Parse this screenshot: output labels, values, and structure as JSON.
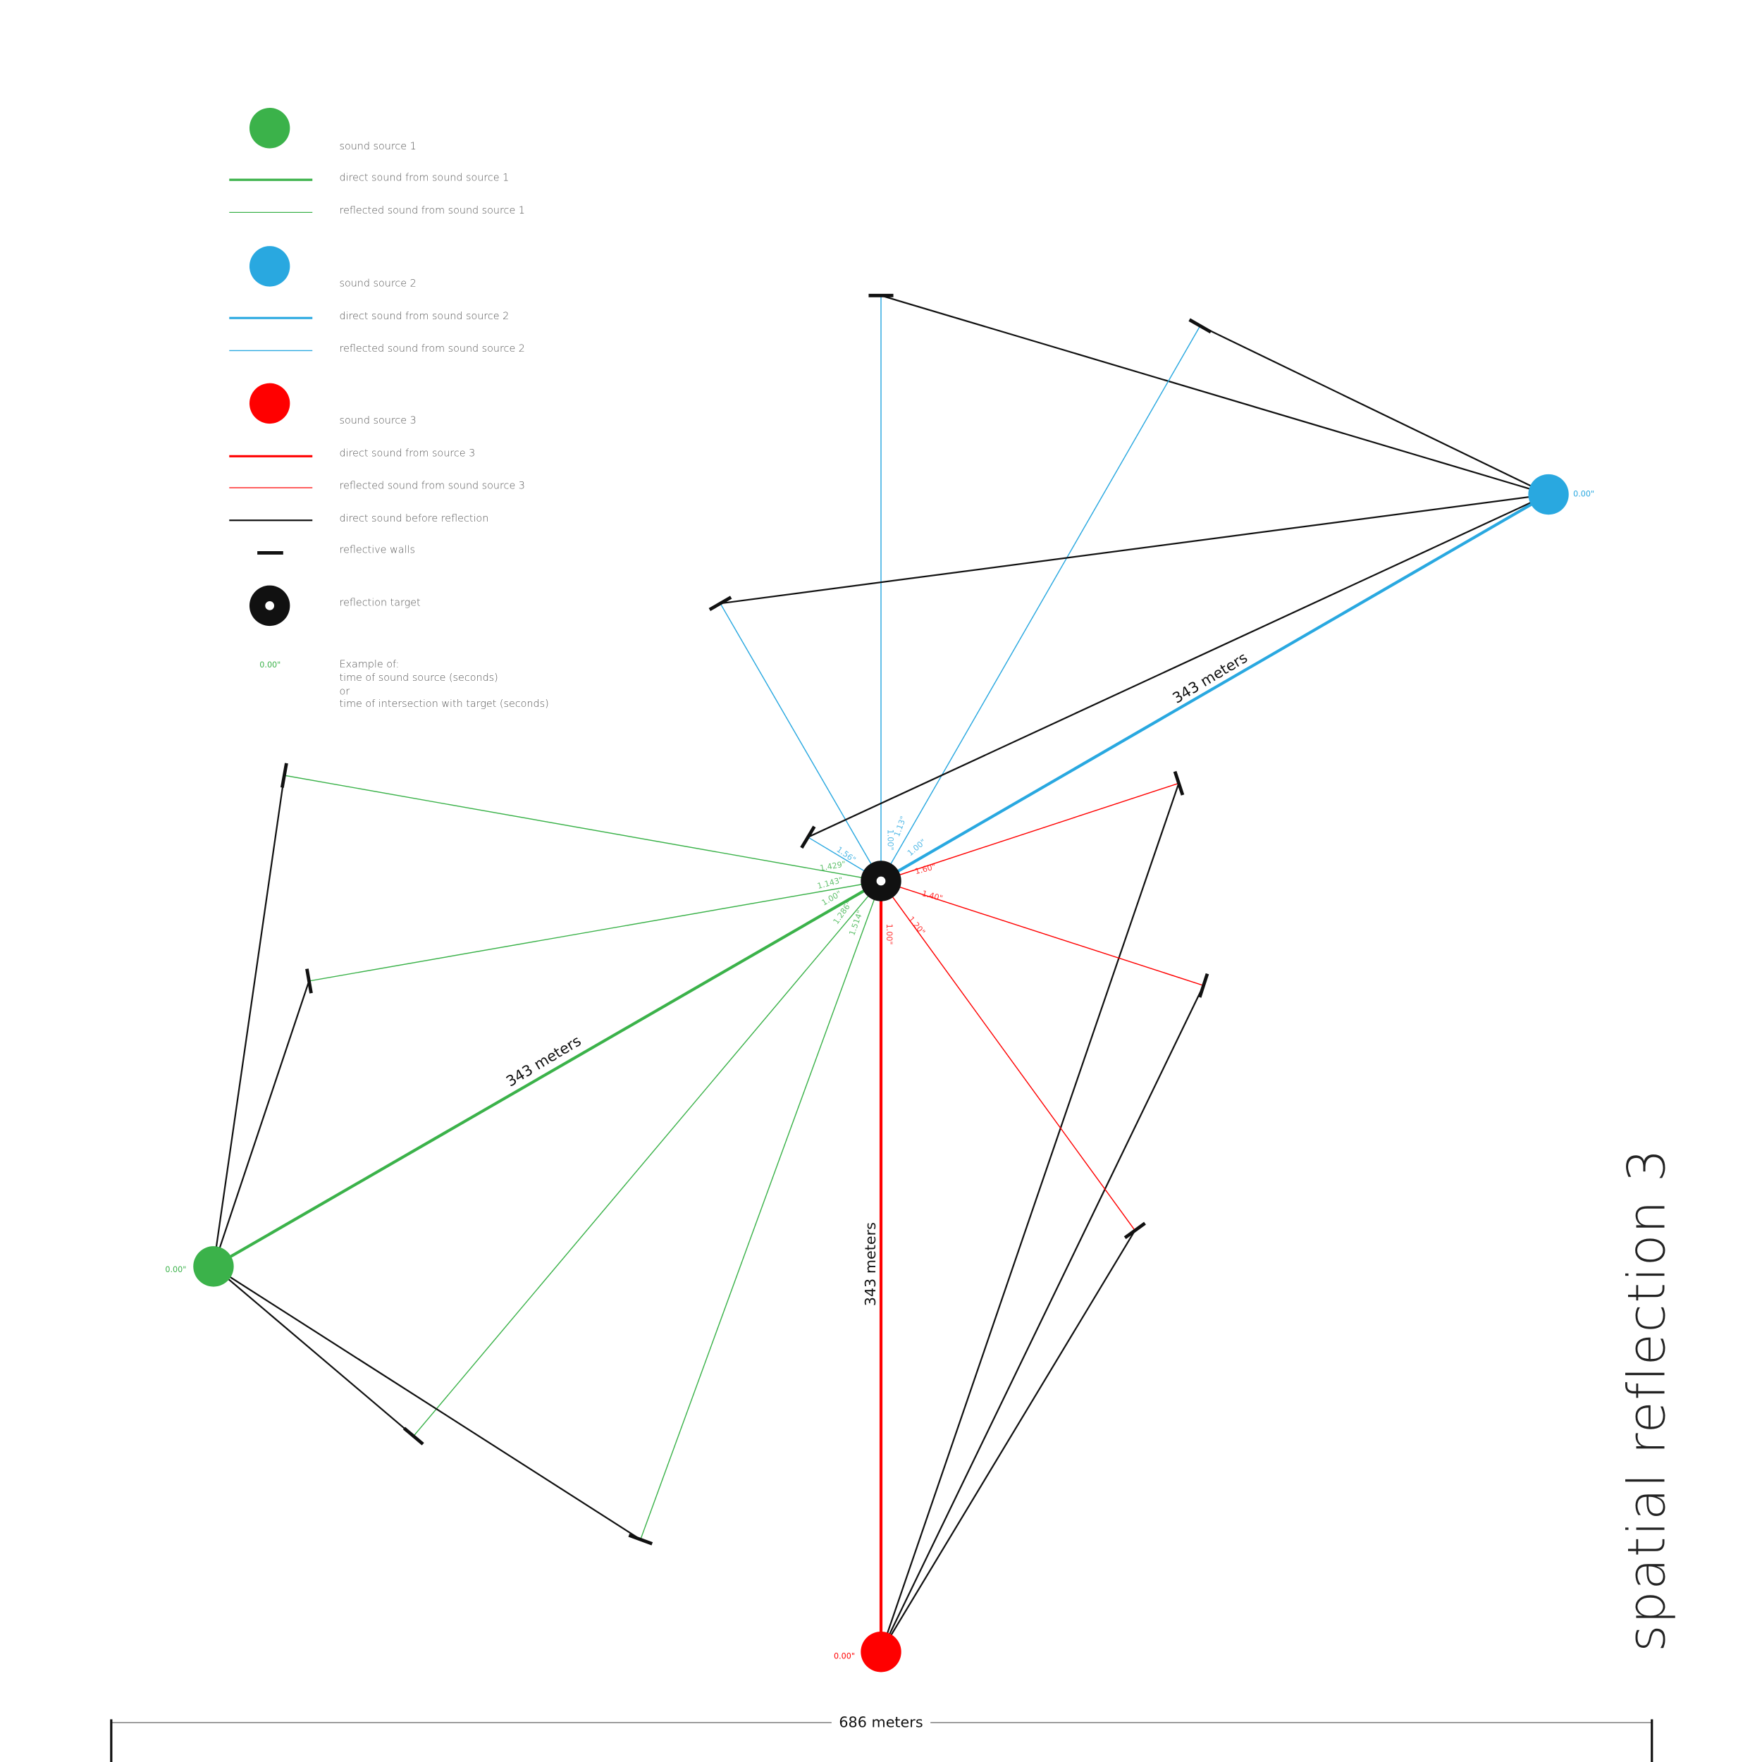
{
  "legend": [
    {
      "label": "sound source 1"
    },
    {
      "label": "direct sound from sound source 1"
    },
    {
      "label": "reflected sound from sound source 1"
    },
    {
      "label": "sound source 2"
    },
    {
      "label": "direct sound from sound source 2"
    },
    {
      "label": "reflected sound from sound source 2"
    },
    {
      "label": "sound source 3"
    },
    {
      "label": "direct sound from source 3"
    },
    {
      "label": "reflected sound from sound source 3"
    },
    {
      "label": "direct sound before reflection"
    },
    {
      "label": "reflective walls"
    },
    {
      "label": "reflection target"
    }
  ],
  "example": {
    "time": "0.00\"",
    "lines": [
      "Example of:",
      "time of sound source (seconds)",
      "or",
      "time of intersection with target (seconds)"
    ]
  },
  "sources": [
    {
      "time": "0.00\"",
      "distance": "343 meters"
    },
    {
      "time": "0.00\"",
      "distance": "343 meters"
    },
    {
      "time": "0.00\"",
      "distance": "343 meters"
    }
  ],
  "reflection_times": {
    "source1": [
      "1.429\"",
      "1.143\"",
      "1.00\"",
      "1.286\"",
      "1.514\""
    ],
    "source2": [
      "1.56\"",
      "1.00\"",
      "1.13\"",
      "1.00\""
    ],
    "source3": [
      "1.60\"",
      "1.40\"",
      "1.20\"",
      "1.00\""
    ]
  },
  "dimension": "686 meters",
  "title": "spatial reflection 3"
}
